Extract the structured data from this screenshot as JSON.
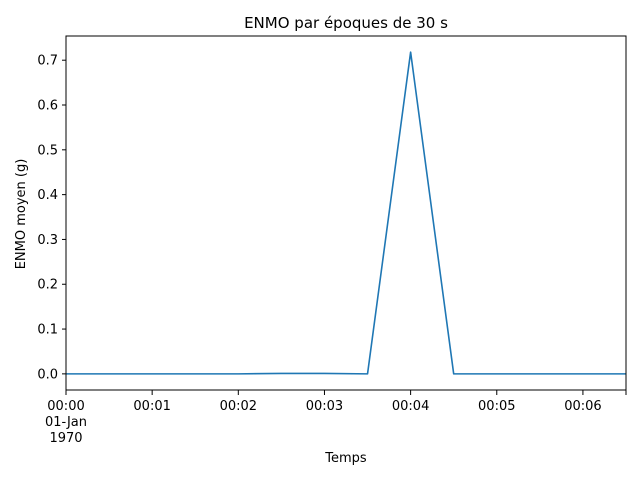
{
  "chart_data": {
    "type": "line",
    "title": "ENMO par époques de 30 s",
    "xlabel": "Temps",
    "ylabel": "ENMO moyen (g)",
    "x": [
      "00:00:00",
      "00:00:30",
      "00:01:00",
      "00:01:30",
      "00:02:00",
      "00:02:30",
      "00:03:00",
      "00:03:30",
      "00:04:00",
      "00:04:30",
      "00:05:00",
      "00:05:30",
      "00:06:00",
      "00:06:30"
    ],
    "series": [
      {
        "values": [
          0.0,
          0.0,
          0.0,
          0.0,
          0.0,
          0.001,
          0.001,
          0.0,
          0.718,
          0.0,
          0.0,
          0.0,
          0.0,
          0.0
        ],
        "color": "#1f77b4"
      }
    ],
    "xlim": [
      "00:00:00",
      "00:06:30"
    ],
    "ylim": [
      -0.036,
      0.754
    ],
    "x_ticks": [
      {
        "value": "00:00:00",
        "label": "00:00",
        "sublabel": "01-Jan",
        "sublabel2": "1970"
      },
      {
        "value": "00:01:00",
        "label": "00:01"
      },
      {
        "value": "00:02:00",
        "label": "00:02"
      },
      {
        "value": "00:03:00",
        "label": "00:03"
      },
      {
        "value": "00:04:00",
        "label": "00:04"
      },
      {
        "value": "00:05:00",
        "label": "00:05"
      },
      {
        "value": "00:06:00",
        "label": "00:06"
      }
    ],
    "y_ticks": [
      0.0,
      0.1,
      0.2,
      0.3,
      0.4,
      0.5,
      0.6,
      0.7
    ],
    "y_tick_labels": [
      "0.0",
      "0.1",
      "0.2",
      "0.3",
      "0.4",
      "0.5",
      "0.6",
      "0.7"
    ],
    "grid": false,
    "legend": "none"
  }
}
